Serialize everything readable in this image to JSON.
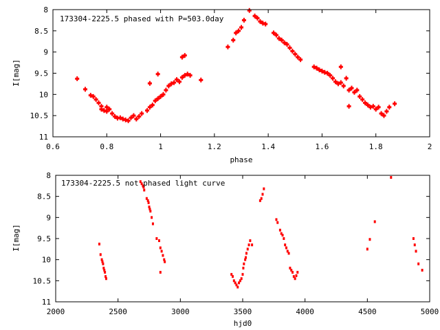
{
  "chart_data": [
    {
      "type": "scatter",
      "title": "173304-2225.5 phased with P=503.0day",
      "xlabel": "phase",
      "ylabel": "I[mag]",
      "xlim": [
        0.6,
        2.0
      ],
      "ylim": [
        8,
        11
      ],
      "y_inverted": true,
      "grid": false,
      "legend": "top-left",
      "marker_color": "#ff0000",
      "xticks": [
        "0.6",
        "0.8",
        "1",
        "1.2",
        "1.4",
        "1.6",
        "1.8",
        "2"
      ],
      "yticks": [
        "8",
        "8.5",
        "9",
        "9.5",
        "10",
        "10.5",
        "11"
      ],
      "points": [
        [
          0.69,
          9.63
        ],
        [
          0.72,
          9.88
        ],
        [
          0.74,
          10.02
        ],
        [
          0.75,
          10.05
        ],
        [
          0.76,
          10.12
        ],
        [
          0.77,
          10.2
        ],
        [
          0.78,
          10.28
        ],
        [
          0.78,
          10.35
        ],
        [
          0.79,
          10.38
        ],
        [
          0.8,
          10.3
        ],
        [
          0.8,
          10.4
        ],
        [
          0.81,
          10.35
        ],
        [
          0.82,
          10.45
        ],
        [
          0.83,
          10.52
        ],
        [
          0.84,
          10.56
        ],
        [
          0.85,
          10.55
        ],
        [
          0.86,
          10.58
        ],
        [
          0.87,
          10.6
        ],
        [
          0.88,
          10.62
        ],
        [
          0.89,
          10.55
        ],
        [
          0.9,
          10.5
        ],
        [
          0.91,
          10.58
        ],
        [
          0.92,
          10.52
        ],
        [
          0.93,
          10.45
        ],
        [
          0.95,
          10.38
        ],
        [
          0.96,
          10.3
        ],
        [
          0.97,
          10.25
        ],
        [
          0.98,
          10.15
        ],
        [
          0.99,
          10.1
        ],
        [
          1.0,
          10.05
        ],
        [
          1.01,
          10.0
        ],
        [
          1.02,
          9.9
        ],
        [
          1.03,
          9.8
        ],
        [
          1.04,
          9.75
        ],
        [
          1.05,
          9.72
        ],
        [
          1.06,
          9.65
        ],
        [
          1.07,
          9.7
        ],
        [
          1.08,
          9.6
        ],
        [
          1.09,
          9.55
        ],
        [
          0.99,
          9.52
        ],
        [
          0.96,
          9.74
        ],
        [
          1.08,
          9.12
        ],
        [
          1.09,
          9.08
        ],
        [
          1.1,
          9.52
        ],
        [
          1.11,
          9.55
        ],
        [
          1.15,
          9.66
        ],
        [
          1.25,
          8.88
        ],
        [
          1.27,
          8.72
        ],
        [
          1.28,
          8.55
        ],
        [
          1.29,
          8.5
        ],
        [
          1.3,
          8.42
        ],
        [
          1.31,
          8.25
        ],
        [
          1.33,
          8.02
        ],
        [
          1.35,
          8.15
        ],
        [
          1.36,
          8.2
        ],
        [
          1.37,
          8.28
        ],
        [
          1.38,
          8.32
        ],
        [
          1.39,
          8.34
        ],
        [
          1.42,
          8.55
        ],
        [
          1.43,
          8.6
        ],
        [
          1.44,
          8.68
        ],
        [
          1.45,
          8.72
        ],
        [
          1.46,
          8.78
        ],
        [
          1.47,
          8.82
        ],
        [
          1.48,
          8.9
        ],
        [
          1.49,
          8.98
        ],
        [
          1.5,
          9.05
        ],
        [
          1.51,
          9.12
        ],
        [
          1.52,
          9.18
        ],
        [
          1.57,
          9.35
        ],
        [
          1.58,
          9.38
        ],
        [
          1.59,
          9.42
        ],
        [
          1.6,
          9.45
        ],
        [
          1.61,
          9.48
        ],
        [
          1.62,
          9.5
        ],
        [
          1.63,
          9.55
        ],
        [
          1.64,
          9.62
        ],
        [
          1.65,
          9.7
        ],
        [
          1.66,
          9.75
        ],
        [
          1.67,
          9.72
        ],
        [
          1.68,
          9.8
        ],
        [
          1.69,
          9.62
        ],
        [
          1.7,
          9.9
        ],
        [
          1.71,
          9.85
        ],
        [
          1.72,
          9.95
        ],
        [
          1.73,
          9.9
        ],
        [
          1.74,
          10.05
        ],
        [
          1.75,
          10.12
        ],
        [
          1.76,
          10.2
        ],
        [
          1.77,
          10.25
        ],
        [
          1.78,
          10.3
        ],
        [
          1.79,
          10.28
        ],
        [
          1.8,
          10.35
        ],
        [
          1.81,
          10.3
        ],
        [
          1.82,
          10.45
        ],
        [
          1.83,
          10.5
        ],
        [
          1.84,
          10.4
        ],
        [
          1.85,
          10.3
        ],
        [
          1.87,
          10.22
        ],
        [
          1.7,
          10.28
        ],
        [
          1.67,
          9.35
        ]
      ]
    },
    {
      "type": "scatter",
      "title": "173304-2225.5 not phased light curve",
      "xlabel": "hjd0",
      "ylabel": "I[mag]",
      "xlim": [
        2000,
        5000
      ],
      "ylim": [
        8,
        11
      ],
      "y_inverted": true,
      "grid": false,
      "legend": "top-left",
      "marker_color": "#ff0000",
      "xticks": [
        "2000",
        "2500",
        "3000",
        "3500",
        "4000",
        "4500",
        "5000"
      ],
      "yticks": [
        "8",
        "8.5",
        "9",
        "9.5",
        "10",
        "10.5",
        "11"
      ],
      "points": [
        [
          2350,
          9.63
        ],
        [
          2360,
          9.88
        ],
        [
          2370,
          10.0
        ],
        [
          2375,
          10.05
        ],
        [
          2380,
          10.1
        ],
        [
          2385,
          10.2
        ],
        [
          2390,
          10.25
        ],
        [
          2395,
          10.3
        ],
        [
          2400,
          10.4
        ],
        [
          2405,
          10.45
        ],
        [
          2680,
          8.15
        ],
        [
          2690,
          8.2
        ],
        [
          2700,
          8.25
        ],
        [
          2705,
          8.28
        ],
        [
          2710,
          8.35
        ],
        [
          2730,
          8.55
        ],
        [
          2740,
          8.6
        ],
        [
          2745,
          8.65
        ],
        [
          2750,
          8.75
        ],
        [
          2755,
          8.8
        ],
        [
          2760,
          8.85
        ],
        [
          2770,
          9.0
        ],
        [
          2780,
          9.15
        ],
        [
          2810,
          9.5
        ],
        [
          2830,
          9.55
        ],
        [
          2840,
          9.72
        ],
        [
          2850,
          9.8
        ],
        [
          2860,
          9.9
        ],
        [
          2870,
          10.0
        ],
        [
          2875,
          10.05
        ],
        [
          2840,
          10.3
        ],
        [
          3410,
          10.35
        ],
        [
          3420,
          10.4
        ],
        [
          3430,
          10.5
        ],
        [
          3440,
          10.55
        ],
        [
          3450,
          10.6
        ],
        [
          3460,
          10.65
        ],
        [
          3470,
          10.55
        ],
        [
          3480,
          10.5
        ],
        [
          3490,
          10.45
        ],
        [
          3500,
          10.35
        ],
        [
          3505,
          10.2
        ],
        [
          3510,
          10.1
        ],
        [
          3520,
          10.0
        ],
        [
          3525,
          9.95
        ],
        [
          3530,
          9.85
        ],
        [
          3540,
          9.75
        ],
        [
          3550,
          9.65
        ],
        [
          3560,
          9.55
        ],
        [
          3575,
          9.65
        ],
        [
          3640,
          8.6
        ],
        [
          3650,
          8.55
        ],
        [
          3660,
          8.45
        ],
        [
          3670,
          8.32
        ],
        [
          3770,
          9.05
        ],
        [
          3780,
          9.12
        ],
        [
          3800,
          9.3
        ],
        [
          3810,
          9.38
        ],
        [
          3820,
          9.42
        ],
        [
          3830,
          9.5
        ],
        [
          3840,
          9.65
        ],
        [
          3850,
          9.72
        ],
        [
          3860,
          9.8
        ],
        [
          3870,
          9.85
        ],
        [
          3880,
          10.2
        ],
        [
          3890,
          10.25
        ],
        [
          3900,
          10.3
        ],
        [
          3910,
          10.4
        ],
        [
          3920,
          10.45
        ],
        [
          3930,
          10.38
        ],
        [
          3940,
          10.3
        ],
        [
          4500,
          9.75
        ],
        [
          4520,
          9.52
        ],
        [
          4560,
          9.1
        ],
        [
          4690,
          8.05
        ],
        [
          4870,
          9.5
        ],
        [
          4880,
          9.65
        ],
        [
          4890,
          9.8
        ],
        [
          4910,
          10.1
        ],
        [
          4940,
          10.25
        ]
      ]
    }
  ]
}
